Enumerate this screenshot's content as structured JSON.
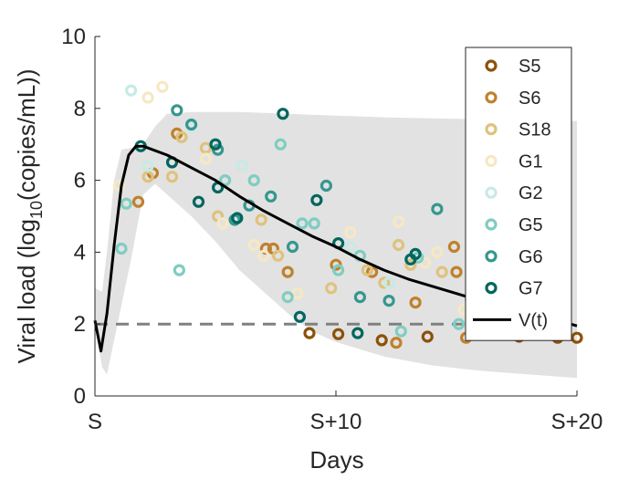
{
  "chart_data": {
    "type": "scatter",
    "title": "",
    "xlabel": "Days",
    "ylabel_main": "Viral load (log",
    "ylabel_sub": "10",
    "ylabel_tail": "(copies/mL))",
    "xlim": [
      0,
      20
    ],
    "ylim": [
      0,
      10
    ],
    "x_ticks": [
      0,
      10,
      20
    ],
    "x_tick_labels": [
      "S",
      "S+10",
      "S+20"
    ],
    "y_ticks": [
      0,
      2,
      4,
      6,
      8,
      10
    ],
    "y_tick_labels": [
      "0",
      "2",
      "4",
      "6",
      "8",
      "10"
    ],
    "grid": false,
    "legend_position": "top-right",
    "detection_limit": 2,
    "series": [
      {
        "name": "S5",
        "color": "#8c510a",
        "points": [
          [
            8.9,
            1.75
          ],
          [
            10.1,
            1.72
          ],
          [
            11.9,
            1.55
          ],
          [
            13.8,
            1.65
          ],
          [
            17.6,
            1.65
          ],
          [
            19.2,
            1.62
          ],
          [
            20.0,
            1.62
          ]
        ]
      },
      {
        "name": "S6",
        "color": "#bf812d",
        "points": [
          [
            1.8,
            5.4
          ],
          [
            2.4,
            6.2
          ],
          [
            3.4,
            7.3
          ],
          [
            7.1,
            4.1
          ],
          [
            7.4,
            4.1
          ],
          [
            8.0,
            3.45
          ],
          [
            10.0,
            3.65
          ],
          [
            11.5,
            3.45
          ],
          [
            12.5,
            1.48
          ],
          [
            13.3,
            2.6
          ],
          [
            14.9,
            4.15
          ],
          [
            15.0,
            3.45
          ],
          [
            15.4,
            1.62
          ]
        ]
      },
      {
        "name": "S18",
        "color": "#dfc27d",
        "points": [
          [
            2.2,
            6.1
          ],
          [
            3.2,
            6.1
          ],
          [
            3.6,
            7.2
          ],
          [
            4.6,
            6.9
          ],
          [
            5.1,
            5.0
          ],
          [
            6.9,
            4.9
          ],
          [
            7.6,
            3.9
          ],
          [
            9.8,
            3.0
          ],
          [
            11.3,
            3.5
          ],
          [
            12.0,
            3.15
          ],
          [
            12.6,
            4.2
          ],
          [
            13.1,
            3.65
          ],
          [
            14.4,
            3.45
          ]
        ]
      },
      {
        "name": "G1",
        "color": "#f6e8c3",
        "points": [
          [
            1.0,
            5.85
          ],
          [
            2.2,
            8.3
          ],
          [
            2.8,
            8.6
          ],
          [
            4.6,
            6.6
          ],
          [
            5.3,
            4.8
          ],
          [
            6.6,
            4.2
          ],
          [
            7.0,
            3.9
          ],
          [
            8.4,
            2.85
          ],
          [
            10.6,
            4.55
          ],
          [
            12.6,
            4.85
          ],
          [
            13.7,
            3.7
          ],
          [
            14.2,
            4.0
          ],
          [
            15.3,
            2.4
          ]
        ]
      },
      {
        "name": "G2",
        "color": "#c7eae5",
        "points": [
          [
            1.5,
            8.5
          ],
          [
            2.2,
            6.4
          ],
          [
            4.0,
            7.5
          ],
          [
            6.1,
            6.4
          ],
          [
            10.6,
            4.15
          ],
          [
            12.2,
            3.15
          ],
          [
            15.9,
            3.0
          ]
        ]
      },
      {
        "name": "G5",
        "color": "#80cdc1",
        "points": [
          [
            1.1,
            4.1
          ],
          [
            1.3,
            5.35
          ],
          [
            3.5,
            3.5
          ],
          [
            5.4,
            6.0
          ],
          [
            6.6,
            6.0
          ],
          [
            7.7,
            7.0
          ],
          [
            8.0,
            2.75
          ],
          [
            8.6,
            4.8
          ],
          [
            9.1,
            4.8
          ],
          [
            10.1,
            3.5
          ],
          [
            11.0,
            3.9
          ],
          [
            12.7,
            1.8
          ],
          [
            13.4,
            3.85
          ],
          [
            15.1,
            2.0
          ]
        ]
      },
      {
        "name": "G6",
        "color": "#35978f",
        "points": [
          [
            3.4,
            7.95
          ],
          [
            4.0,
            7.55
          ],
          [
            5.1,
            6.85
          ],
          [
            5.8,
            4.9
          ],
          [
            6.4,
            5.3
          ],
          [
            7.3,
            5.55
          ],
          [
            8.2,
            4.15
          ],
          [
            9.6,
            5.85
          ],
          [
            11.0,
            2.75
          ],
          [
            12.2,
            2.65
          ],
          [
            14.2,
            5.2
          ],
          [
            15.6,
            2.7
          ]
        ]
      },
      {
        "name": "G7",
        "color": "#01665e",
        "points": [
          [
            1.9,
            6.95
          ],
          [
            3.2,
            6.5
          ],
          [
            4.3,
            5.4
          ],
          [
            5.0,
            7.0
          ],
          [
            5.1,
            5.8
          ],
          [
            5.9,
            4.95
          ],
          [
            7.8,
            7.85
          ],
          [
            8.5,
            2.2
          ],
          [
            9.2,
            5.45
          ],
          [
            10.1,
            4.25
          ],
          [
            10.9,
            1.75
          ],
          [
            13.1,
            3.8
          ],
          [
            13.3,
            3.95
          ]
        ]
      }
    ],
    "model_curve": {
      "name": "V(t)",
      "color": "#000000",
      "points": [
        [
          0.0,
          2.1
        ],
        [
          0.25,
          1.25
        ],
        [
          0.5,
          2.3
        ],
        [
          0.8,
          4.2
        ],
        [
          1.1,
          5.85
        ],
        [
          1.4,
          6.7
        ],
        [
          1.7,
          6.95
        ],
        [
          2.0,
          6.95
        ],
        [
          3.0,
          6.7
        ],
        [
          4.0,
          6.35
        ],
        [
          5.0,
          6.0
        ],
        [
          6.0,
          5.55
        ],
        [
          7.0,
          5.15
        ],
        [
          8.0,
          4.8
        ],
        [
          9.0,
          4.45
        ],
        [
          10.0,
          4.15
        ],
        [
          11.0,
          3.8
        ],
        [
          12.0,
          3.5
        ],
        [
          13.0,
          3.25
        ],
        [
          14.0,
          3.05
        ],
        [
          15.0,
          2.85
        ],
        [
          16.0,
          2.65
        ],
        [
          17.0,
          2.45
        ],
        [
          18.0,
          2.3
        ],
        [
          19.0,
          2.15
        ],
        [
          20.0,
          1.95
        ]
      ]
    },
    "confidence_band": {
      "color": "#e2e2e2",
      "upper": [
        [
          0.0,
          3.0
        ],
        [
          0.3,
          2.9
        ],
        [
          0.5,
          4.0
        ],
        [
          0.8,
          6.0
        ],
        [
          1.1,
          6.85
        ],
        [
          1.5,
          6.9
        ],
        [
          2.0,
          7.0
        ],
        [
          2.5,
          7.5
        ],
        [
          3.0,
          7.85
        ],
        [
          4.0,
          7.9
        ],
        [
          6.0,
          7.9
        ],
        [
          8.0,
          7.85
        ],
        [
          10.0,
          7.8
        ],
        [
          12.0,
          7.75
        ],
        [
          14.0,
          7.72
        ],
        [
          16.0,
          7.7
        ],
        [
          18.0,
          7.68
        ],
        [
          20.0,
          7.65
        ]
      ],
      "lower": [
        [
          20.0,
          0.5
        ],
        [
          18.0,
          0.6
        ],
        [
          16.0,
          0.7
        ],
        [
          14.0,
          0.85
        ],
        [
          12.0,
          1.1
        ],
        [
          10.0,
          1.5
        ],
        [
          9.0,
          1.8
        ],
        [
          8.0,
          2.3
        ],
        [
          7.0,
          2.9
        ],
        [
          6.0,
          3.5
        ],
        [
          5.0,
          4.3
        ],
        [
          4.0,
          5.0
        ],
        [
          3.0,
          5.6
        ],
        [
          2.5,
          5.9
        ],
        [
          2.0,
          5.6
        ],
        [
          1.5,
          3.8
        ],
        [
          1.0,
          2.2
        ],
        [
          0.5,
          0.6
        ],
        [
          0.3,
          0.8
        ],
        [
          0.0,
          2.0
        ]
      ]
    }
  }
}
